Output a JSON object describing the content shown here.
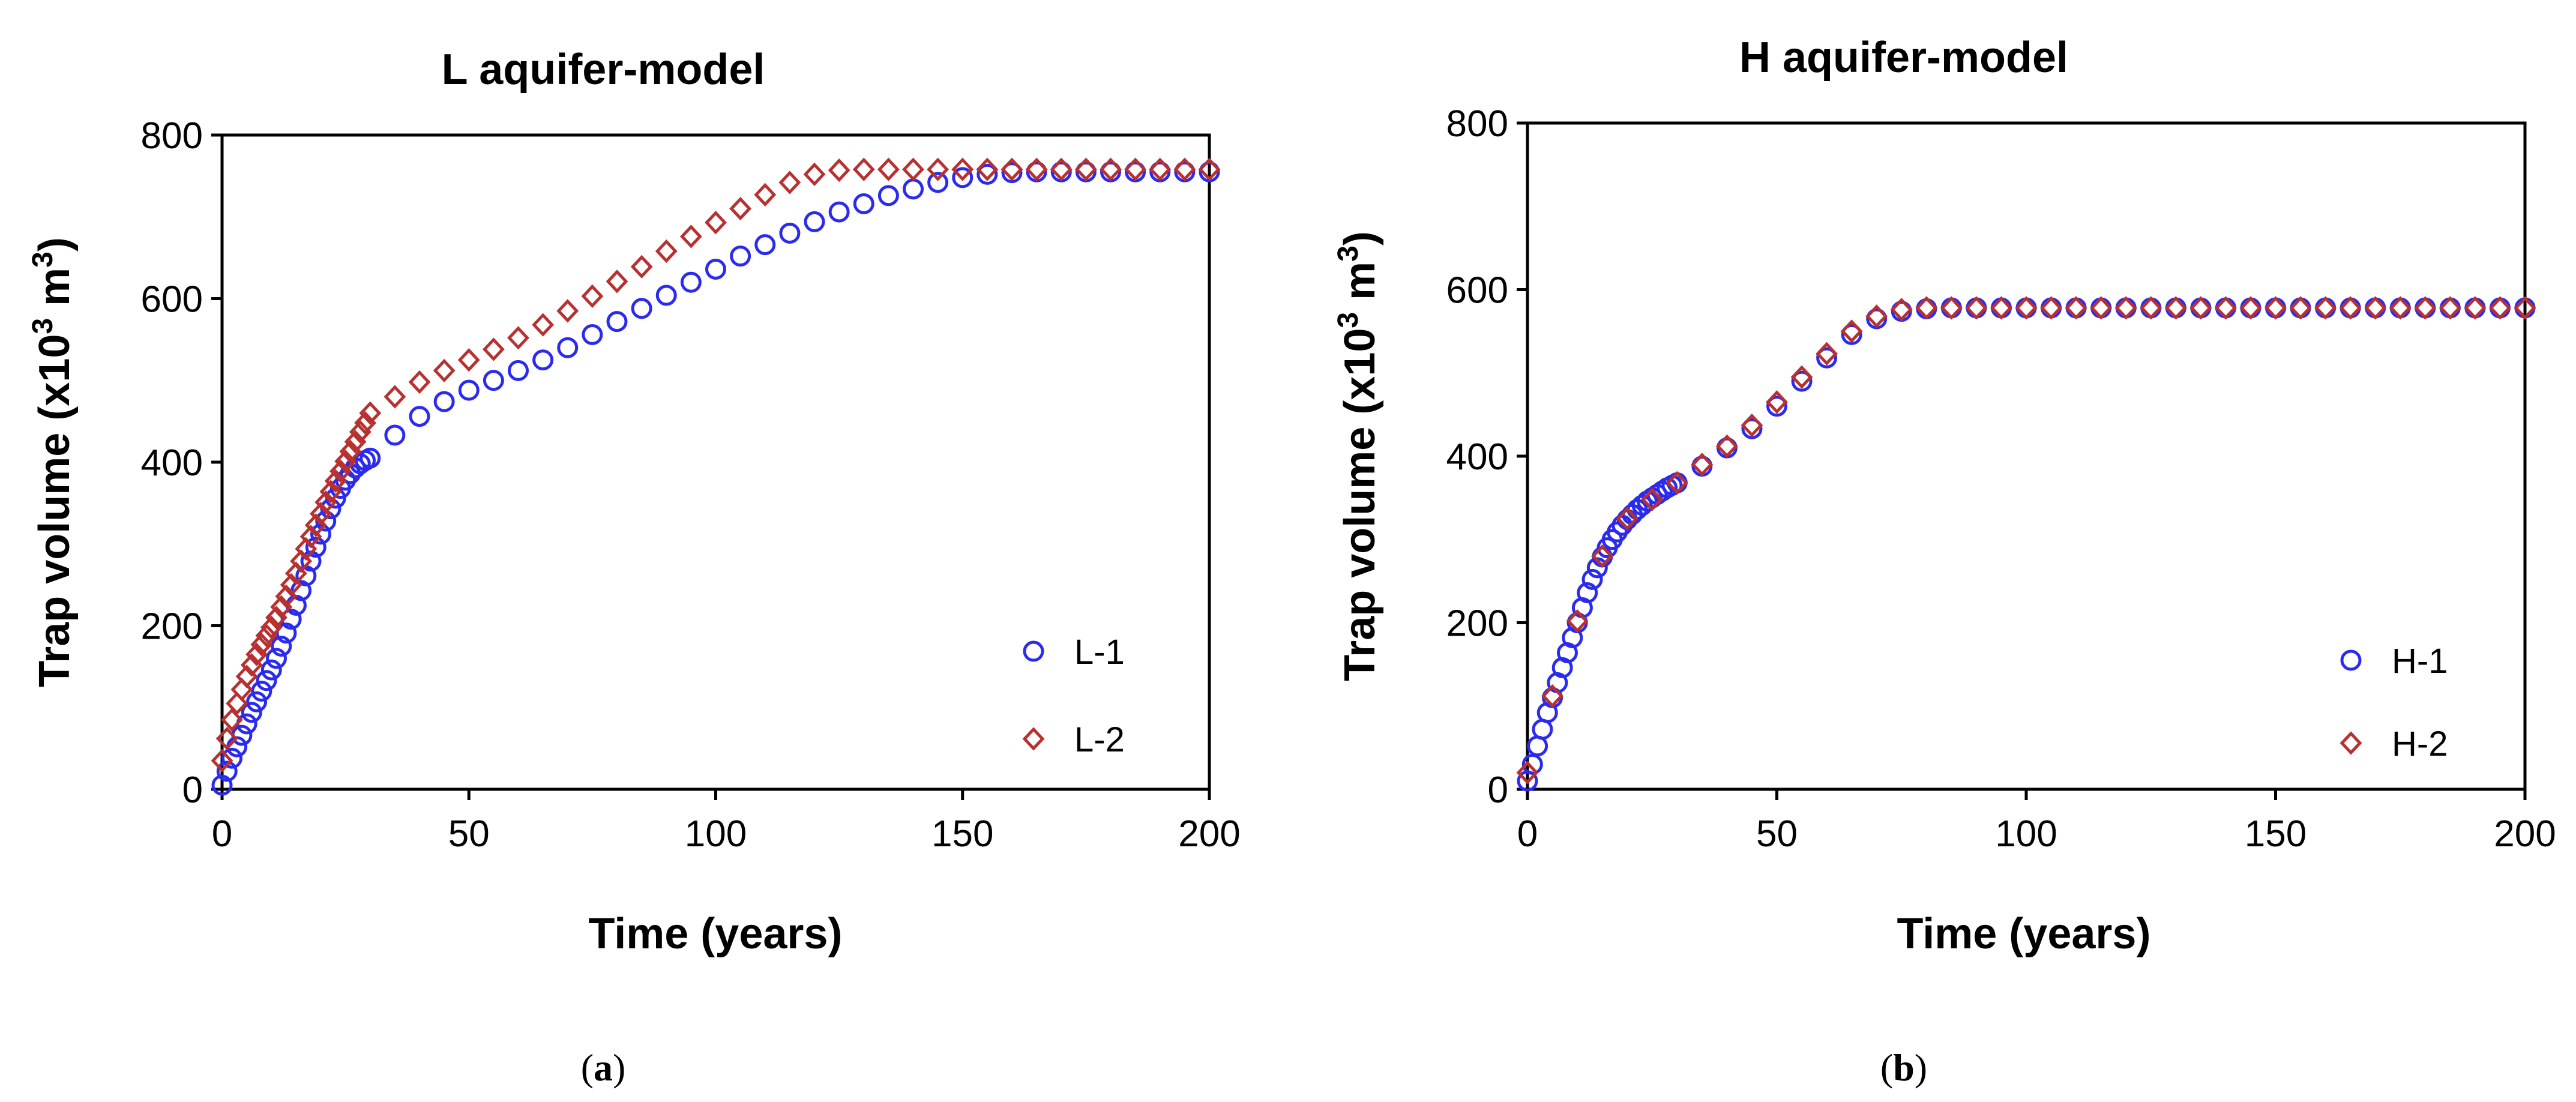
{
  "chart_data": [
    {
      "type": "scatter",
      "title": "L aquifer-model",
      "xlabel": "Time (years)",
      "ylabel_main": "Trap volume (x10",
      "ylabel_sup": "3",
      "ylabel_unit": " m",
      "ylabel_unit_sup": "3",
      "ylabel_end": ")",
      "xlim": [
        0,
        200
      ],
      "ylim": [
        0,
        800
      ],
      "xticks": [
        "0",
        "50",
        "100",
        "150",
        "200"
      ],
      "yticks": [
        "0",
        "200",
        "400",
        "600",
        "800"
      ],
      "legend_position": "bottom-right",
      "caption_open": "(",
      "caption_letter": "a",
      "caption_close": ")",
      "series": [
        {
          "name": "L-1",
          "marker": "circle",
          "color": "#2b2bf0",
          "x": [
            0,
            1,
            2,
            3,
            4,
            5,
            6,
            7,
            8,
            9,
            10,
            11,
            12,
            13,
            14,
            15,
            16,
            17,
            18,
            19,
            20,
            21,
            22,
            23,
            24,
            25,
            26,
            27,
            28,
            29,
            30,
            35,
            40,
            45,
            50,
            55,
            60,
            65,
            70,
            75,
            80,
            85,
            90,
            95,
            100,
            105,
            110,
            115,
            120,
            125,
            130,
            135,
            140,
            145,
            150,
            155,
            160,
            165,
            170,
            175,
            180,
            185,
            190,
            195,
            200
          ],
          "y": [
            5,
            22,
            38,
            52,
            66,
            80,
            94,
            107,
            120,
            133,
            146,
            160,
            175,
            191,
            208,
            225,
            243,
            261,
            279,
            296,
            312,
            328,
            343,
            356,
            368,
            378,
            386,
            393,
            398,
            402,
            405,
            433,
            456,
            474,
            488,
            500,
            512,
            525,
            540,
            556,
            572,
            588,
            604,
            620,
            636,
            652,
            666,
            680,
            694,
            706,
            716,
            726,
            734,
            742,
            748,
            752,
            754,
            755,
            755,
            755,
            755,
            755,
            755,
            755,
            755
          ]
        },
        {
          "name": "L-2",
          "marker": "diamond",
          "color": "#b83030",
          "x": [
            0,
            1,
            2,
            3,
            4,
            5,
            6,
            7,
            8,
            9,
            10,
            11,
            12,
            13,
            14,
            15,
            16,
            17,
            18,
            19,
            20,
            21,
            22,
            23,
            24,
            25,
            26,
            27,
            28,
            29,
            30,
            35,
            40,
            45,
            50,
            55,
            60,
            65,
            70,
            75,
            80,
            85,
            90,
            95,
            100,
            105,
            110,
            115,
            120,
            125,
            130,
            135,
            140,
            145,
            150,
            155,
            160,
            165,
            170,
            175,
            180,
            185,
            190,
            195,
            200
          ],
          "y": [
            35,
            62,
            85,
            105,
            122,
            138,
            152,
            165,
            177,
            188,
            198,
            210,
            223,
            236,
            250,
            264,
            279,
            294,
            309,
            323,
            337,
            351,
            364,
            377,
            389,
            401,
            413,
            425,
            437,
            448,
            460,
            480,
            498,
            512,
            525,
            538,
            552,
            568,
            585,
            603,
            621,
            639,
            658,
            676,
            693,
            710,
            727,
            742,
            752,
            757,
            758,
            758,
            758,
            758,
            758,
            758,
            758,
            758,
            758,
            758,
            758,
            758,
            758,
            758,
            758
          ]
        }
      ]
    },
    {
      "type": "scatter",
      "title": "H aquifer-model",
      "xlabel": "Time (years)",
      "ylabel_main": "Trap volume (x10",
      "ylabel_sup": "3",
      "ylabel_unit": " m",
      "ylabel_unit_sup": "3",
      "ylabel_end": ")",
      "xlim": [
        0,
        200
      ],
      "ylim": [
        0,
        800
      ],
      "xticks": [
        "0",
        "50",
        "100",
        "150",
        "200"
      ],
      "yticks": [
        "0",
        "200",
        "400",
        "600",
        "800"
      ],
      "legend_position": "bottom-right",
      "caption_open": "(",
      "caption_letter": "b",
      "caption_close": ")",
      "series": [
        {
          "name": "H-1",
          "marker": "circle",
          "color": "#2b2bf0",
          "x": [
            0,
            1,
            2,
            3,
            4,
            5,
            6,
            7,
            8,
            9,
            10,
            11,
            12,
            13,
            14,
            15,
            16,
            17,
            18,
            19,
            20,
            21,
            22,
            23,
            24,
            25,
            26,
            27,
            28,
            29,
            30,
            35,
            40,
            45,
            50,
            55,
            60,
            65,
            70,
            75,
            80,
            85,
            90,
            95,
            100,
            105,
            110,
            115,
            120,
            125,
            130,
            135,
            140,
            145,
            150,
            155,
            160,
            165,
            170,
            175,
            180,
            185,
            190,
            195,
            200
          ],
          "y": [
            10,
            30,
            52,
            72,
            92,
            110,
            128,
            146,
            164,
            182,
            200,
            218,
            236,
            252,
            266,
            279,
            290,
            300,
            309,
            317,
            324,
            330,
            336,
            341,
            346,
            350,
            354,
            358,
            362,
            365,
            368,
            388,
            410,
            433,
            460,
            490,
            518,
            546,
            565,
            574,
            577,
            578,
            578,
            578,
            578,
            578,
            578,
            578,
            578,
            578,
            578,
            578,
            578,
            578,
            578,
            578,
            578,
            578,
            578,
            578,
            578,
            578,
            578,
            578,
            578
          ]
        },
        {
          "name": "H-2",
          "marker": "diamond",
          "color": "#b83030",
          "x": [
            0,
            5,
            10,
            15,
            20,
            25,
            30,
            35,
            40,
            45,
            50,
            55,
            60,
            65,
            70,
            75,
            80,
            85,
            90,
            95,
            100,
            105,
            110,
            115,
            120,
            125,
            130,
            135,
            140,
            145,
            150,
            155,
            160,
            165,
            170,
            175,
            180,
            185,
            190,
            195,
            200
          ],
          "y": [
            20,
            112,
            202,
            280,
            325,
            348,
            368,
            390,
            412,
            437,
            465,
            495,
            523,
            550,
            568,
            576,
            578,
            578,
            578,
            578,
            578,
            578,
            578,
            578,
            578,
            578,
            578,
            578,
            578,
            578,
            578,
            578,
            578,
            578,
            578,
            578,
            578,
            578,
            578,
            578,
            578
          ]
        }
      ]
    }
  ]
}
